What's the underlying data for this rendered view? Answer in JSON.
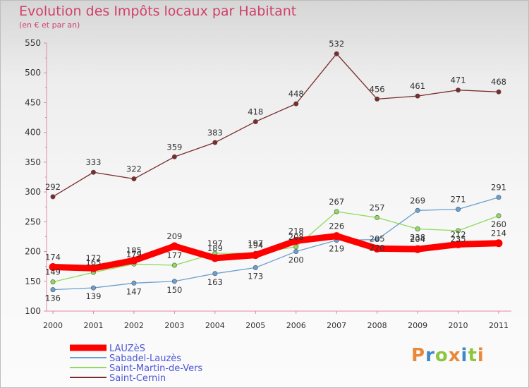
{
  "chart_data": {
    "type": "line",
    "title": "Evolution des Impôts locaux par Habitant",
    "subtitle": "(en € et par an)",
    "x": [
      "2000",
      "2001",
      "2002",
      "2003",
      "2004",
      "2005",
      "2006",
      "2007",
      "2008",
      "2009",
      "2010",
      "2011"
    ],
    "ylim": [
      100,
      550
    ],
    "yticks": [
      100,
      150,
      200,
      250,
      300,
      350,
      400,
      450,
      500,
      550
    ],
    "grid": false,
    "legend_position": "bottom-left",
    "series": [
      {
        "name": "LAUZèS",
        "color": "#ff0000",
        "values": [
          174,
          172,
          185,
          209,
          189,
          194,
          218,
          226,
          205,
          204,
          212,
          214
        ]
      },
      {
        "name": "Sabadel-Lauzès",
        "color": "#6b9fd1",
        "values": [
          136,
          139,
          147,
          150,
          163,
          173,
          200,
          219,
          220,
          269,
          271,
          291
        ]
      },
      {
        "name": "Saint-Martin-de-Vers",
        "color": "#8fdb5c",
        "values": [
          149,
          165,
          179,
          177,
          197,
          197,
          208,
          267,
          257,
          238,
          235,
          260
        ]
      },
      {
        "name": "Saint-Cernin",
        "color": "#7a2b2b",
        "values": [
          292,
          333,
          322,
          359,
          383,
          418,
          448,
          532,
          456,
          461,
          471,
          468
        ]
      }
    ]
  },
  "logo": {
    "letters": [
      {
        "ch": "P",
        "color": "#e8893a"
      },
      {
        "ch": "r",
        "color": "#3e87c8"
      },
      {
        "ch": "o",
        "color": "#8cc63f"
      },
      {
        "ch": "x",
        "color": "#e8893a"
      },
      {
        "ch": "i",
        "color": "#3e87c8"
      },
      {
        "ch": "t",
        "color": "#8cc63f"
      },
      {
        "ch": "i",
        "color": "#e8893a"
      }
    ]
  }
}
